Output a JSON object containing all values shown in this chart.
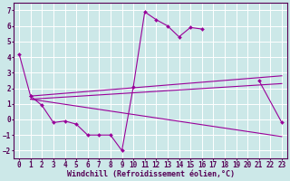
{
  "background_color": "#cce8e8",
  "grid_color": "#ffffff",
  "line_color": "#990099",
  "xlabel": "Windchill (Refroidissement éolien,°C)",
  "xlabel_fontsize": 6,
  "tick_fontsize": 5.5,
  "xlim": [
    -0.5,
    23.5
  ],
  "ylim": [
    -2.5,
    7.5
  ],
  "yticks": [
    -2,
    -1,
    0,
    1,
    2,
    3,
    4,
    5,
    6,
    7
  ],
  "xticks": [
    0,
    1,
    2,
    3,
    4,
    5,
    6,
    7,
    8,
    9,
    10,
    11,
    12,
    13,
    14,
    15,
    16,
    17,
    18,
    19,
    20,
    21,
    22,
    23
  ],
  "series": [
    {
      "x": [
        0,
        1,
        21,
        22,
        23
      ],
      "y": [
        4.2,
        1.5,
        2.5,
        2.5,
        -0.2
      ],
      "connected": false,
      "segments": [
        {
          "x": [
            0,
            1
          ],
          "y": [
            4.2,
            1.5
          ]
        },
        {
          "x": [
            21,
            23
          ],
          "y": [
            2.5,
            -0.2
          ]
        }
      ],
      "marker": "D",
      "markersize": 2.0,
      "linewidth": 0.8
    },
    {
      "comment": "Zigzag line: 1=1.5, 2=0.9, 3=-0.2, 4=-0.1, 5=-0.3, 6=-1.0, 7=-1.0, 8=-1.0, 9=-2.0, 10=2.1, 11=6.9, 12=6.4, 13=6.0, 14=5.3, 15=5.9, 16=5.8",
      "segments": [
        {
          "x": [
            1,
            2,
            3,
            4,
            5,
            6,
            7,
            8,
            9,
            10,
            11,
            12,
            13,
            14,
            15,
            16
          ],
          "y": [
            1.5,
            0.9,
            -0.2,
            -0.1,
            -0.3,
            -1.0,
            -1.0,
            -1.0,
            -2.0,
            2.1,
            6.9,
            6.4,
            6.0,
            5.3,
            5.9,
            5.8
          ]
        }
      ],
      "marker": "D",
      "markersize": 2.0,
      "linewidth": 0.8
    },
    {
      "segments": [
        {
          "x": [
            1,
            23
          ],
          "y": [
            1.5,
            2.8
          ]
        }
      ],
      "marker": null,
      "markersize": 0,
      "linewidth": 0.8
    },
    {
      "segments": [
        {
          "x": [
            1,
            23
          ],
          "y": [
            1.3,
            2.3
          ]
        }
      ],
      "marker": null,
      "markersize": 0,
      "linewidth": 0.8
    },
    {
      "segments": [
        {
          "x": [
            1,
            23
          ],
          "y": [
            1.3,
            -1.1
          ]
        }
      ],
      "marker": null,
      "markersize": 0,
      "linewidth": 0.8
    }
  ]
}
